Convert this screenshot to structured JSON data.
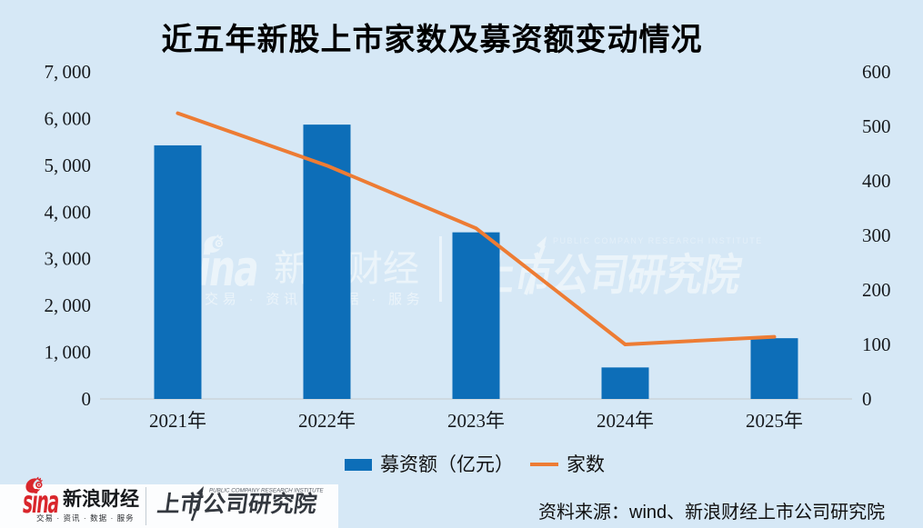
{
  "title": "近五年新股上市家数及募资额变动情况",
  "colors": {
    "background": "#d6e8f6",
    "bar": "#0d6eb8",
    "line": "#ed7c34",
    "axis": "#ccd4da"
  },
  "chart_data": {
    "type": "bar",
    "title": "近五年新股上市家数及募资额变动情况",
    "categories": [
      "2021年",
      "2022年",
      "2023年",
      "2024年",
      "2025年"
    ],
    "series": [
      {
        "name": "募资额（亿元）",
        "type": "bar",
        "axis": "left",
        "color": "#0d6eb8",
        "values": [
          5426,
          5870,
          3565,
          674,
          1300
        ]
      },
      {
        "name": "家数",
        "type": "line",
        "axis": "right",
        "color": "#ed7c34",
        "values": [
          524,
          428,
          313,
          100,
          114
        ]
      }
    ],
    "left_axis": {
      "min": 0,
      "max": 7000,
      "step": 1000
    },
    "right_axis": {
      "min": 0,
      "max": 600,
      "step": 100
    },
    "grid": false,
    "legend_position": "bottom"
  },
  "watermark": {
    "sina_latin": "sina",
    "sina_cn": "新浪财经",
    "tagline": "交易 · 资讯 · 数据 · 服务",
    "pcri_en": "PUBLIC COMPANY RESEARCH INSTITUTE",
    "pcri_cn": "上市公司研究院"
  },
  "footer": {
    "sina_latin": "sina",
    "sina_cn": "新浪财经",
    "tagline": "交易 · 资讯 · 数据 · 服务",
    "pcri_en": "PUBLIC COMPANY RESEARCH INSTITUTE",
    "pcri_cn": "上市公司研究院",
    "source": "资料来源：wind、新浪财经上市公司研究院"
  }
}
